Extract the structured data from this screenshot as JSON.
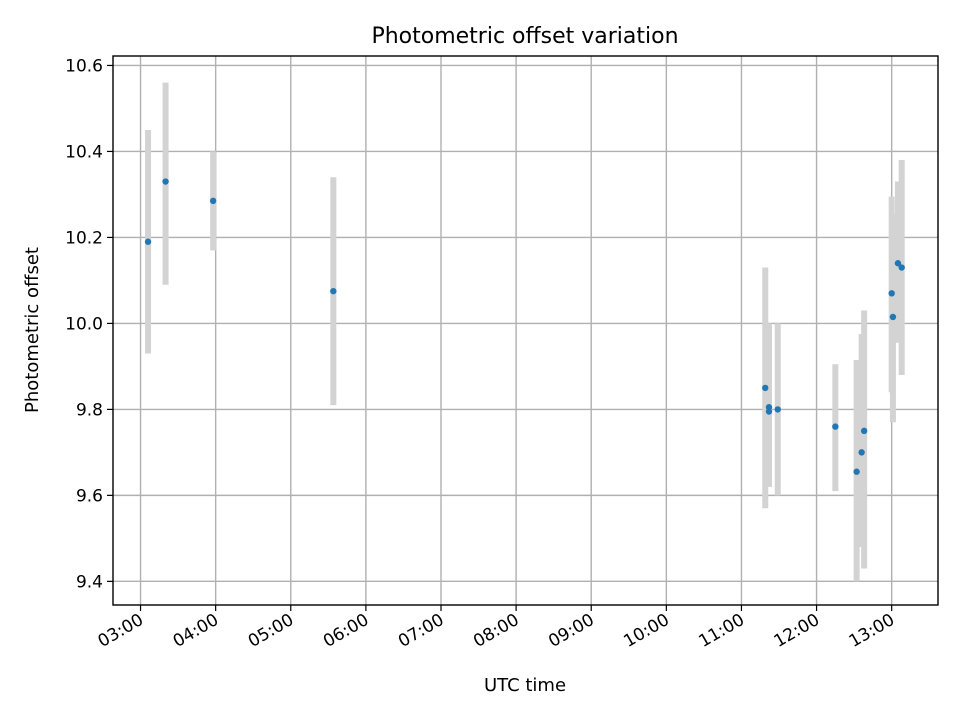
{
  "chart_data": {
    "type": "scatter",
    "title": "Photometric offset variation",
    "xlabel": "UTC time",
    "ylabel": "Photometric offset",
    "grid": true,
    "x_unit": "UTC HH:MM",
    "xlim": [
      "02:38",
      "13:37"
    ],
    "ylim": [
      9.345,
      10.622
    ],
    "x_ticks": [
      "03:00",
      "04:00",
      "05:00",
      "06:00",
      "07:00",
      "08:00",
      "09:00",
      "10:00",
      "11:00",
      "12:00",
      "13:00"
    ],
    "y_ticks": [
      "9.4",
      "9.6",
      "9.8",
      "10.0",
      "10.2",
      "10.4",
      "10.6"
    ],
    "colors": {
      "marker": "#1f77b4",
      "errorbar": "#d3d3d3"
    },
    "series": [
      {
        "points": [
          {
            "x": "03:06",
            "y": 10.19,
            "ylow": 9.93,
            "yhigh": 10.45
          },
          {
            "x": "03:20",
            "y": 10.33,
            "ylow": 10.09,
            "yhigh": 10.56
          },
          {
            "x": "03:58",
            "y": 10.285,
            "ylow": 10.17,
            "yhigh": 10.4
          },
          {
            "x": "05:34",
            "y": 10.075,
            "ylow": 9.81,
            "yhigh": 10.34
          },
          {
            "x": "11:19",
            "y": 9.85,
            "ylow": 9.57,
            "yhigh": 10.13
          },
          {
            "x": "11:22",
            "y": 9.805,
            "ylow": 9.62,
            "yhigh": 10.0
          },
          {
            "x": "11:22",
            "y": 9.795,
            "ylow": 9.62,
            "yhigh": 9.99
          },
          {
            "x": "11:29",
            "y": 9.8,
            "ylow": 9.6,
            "yhigh": 10.0
          },
          {
            "x": "12:15",
            "y": 9.76,
            "ylow": 9.61,
            "yhigh": 9.905
          },
          {
            "x": "12:32",
            "y": 9.655,
            "ylow": 9.4,
            "yhigh": 9.915
          },
          {
            "x": "12:36",
            "y": 9.7,
            "ylow": 9.48,
            "yhigh": 9.975
          },
          {
            "x": "12:38",
            "y": 9.75,
            "ylow": 9.43,
            "yhigh": 10.03
          },
          {
            "x": "13:00",
            "y": 10.07,
            "ylow": 9.84,
            "yhigh": 10.295
          },
          {
            "x": "13:01",
            "y": 10.015,
            "ylow": 9.77,
            "yhigh": 10.255
          },
          {
            "x": "13:05",
            "y": 10.14,
            "ylow": 9.955,
            "yhigh": 10.33
          },
          {
            "x": "13:08",
            "y": 10.13,
            "ylow": 9.88,
            "yhigh": 10.38
          }
        ]
      }
    ]
  }
}
